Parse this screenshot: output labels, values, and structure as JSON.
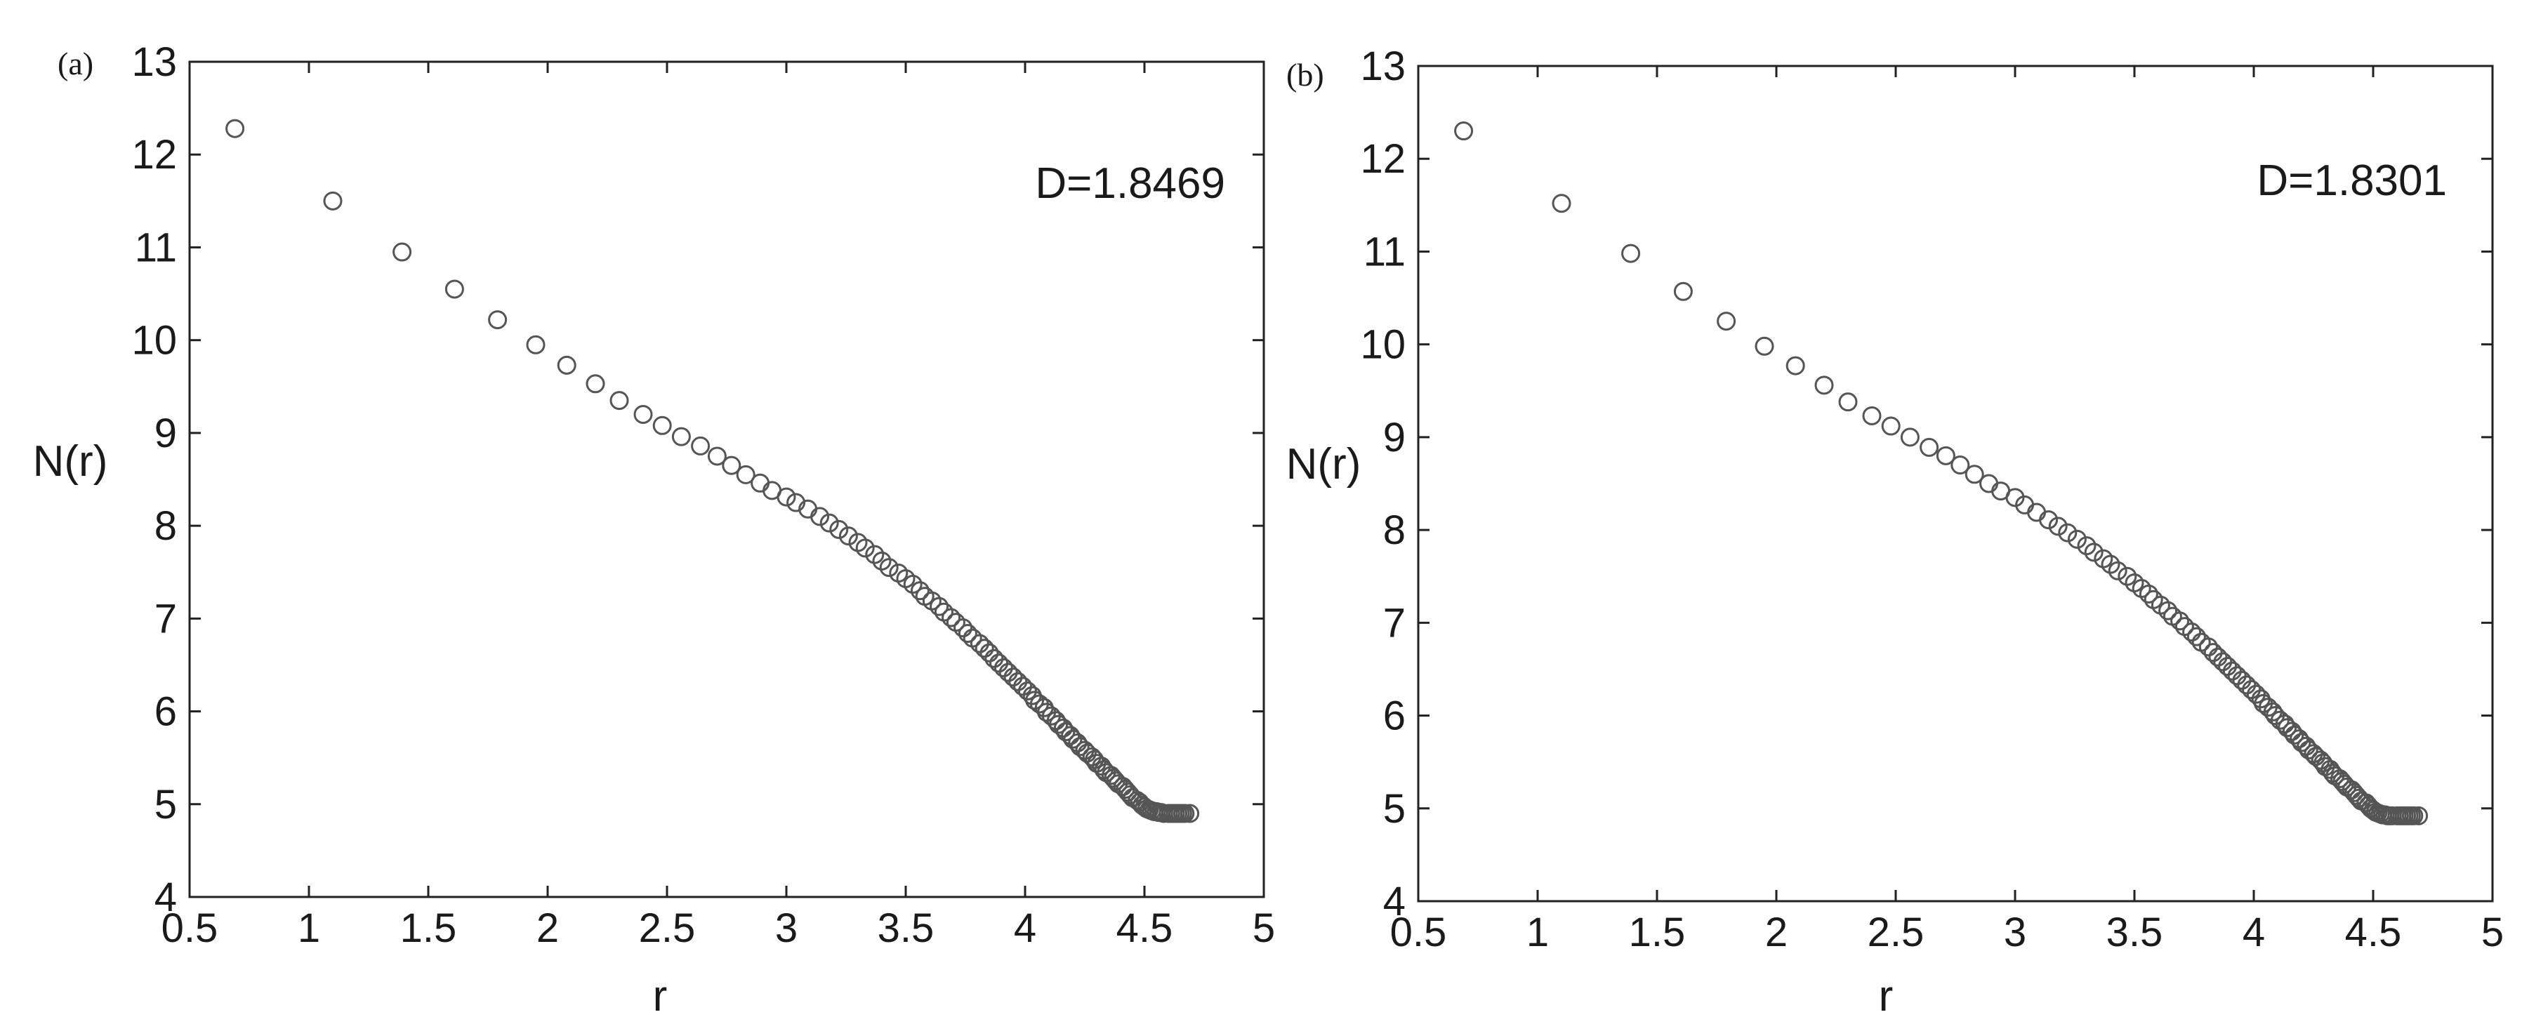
{
  "chart_data": [
    {
      "type": "scatter",
      "panel_label": "(a)",
      "annotation": "D=1.8469",
      "xlabel": "r",
      "ylabel": "N(r)",
      "xlim": [
        0.5,
        5
      ],
      "ylim": [
        4,
        13
      ],
      "xticks": [
        "0.5",
        "1",
        "1.5",
        "2",
        "2.5",
        "3",
        "3.5",
        "4",
        "4.5",
        "5"
      ],
      "yticks": [
        "4",
        "5",
        "6",
        "7",
        "8",
        "9",
        "10",
        "11",
        "12",
        "13"
      ],
      "grid": false,
      "marker": "open-circle",
      "x": [
        0.69,
        1.1,
        1.39,
        1.61,
        1.79,
        1.95,
        2.08,
        2.2,
        2.3,
        2.4,
        2.48,
        2.56,
        2.64,
        2.71,
        2.77,
        2.83,
        2.89,
        2.94,
        3.0,
        3.04,
        3.09,
        3.14,
        3.18,
        3.22,
        3.26,
        3.3,
        3.33,
        3.37,
        3.4,
        3.43,
        3.47,
        3.5,
        3.53,
        3.56,
        3.58,
        3.61,
        3.64,
        3.66,
        3.69,
        3.71,
        3.74,
        3.76,
        3.78,
        3.81,
        3.83,
        3.85,
        3.87,
        3.89,
        3.91,
        3.93,
        3.95,
        3.97,
        3.99,
        4.01,
        4.03,
        4.04,
        4.06,
        4.08,
        4.09,
        4.11,
        4.13,
        4.14,
        4.16,
        4.17,
        4.19,
        4.2,
        4.22,
        4.23,
        4.25,
        4.26,
        4.28,
        4.29,
        4.3,
        4.32,
        4.33,
        4.34,
        4.36,
        4.37,
        4.38,
        4.39,
        4.41,
        4.42,
        4.43,
        4.44,
        4.45,
        4.47,
        4.48,
        4.49,
        4.5,
        4.51,
        4.52,
        4.53,
        4.54,
        4.55,
        4.56,
        4.57,
        4.58,
        4.6,
        4.61,
        4.62,
        4.63,
        4.64,
        4.65,
        4.66,
        4.67,
        4.69
      ],
      "y": [
        12.28,
        11.5,
        10.95,
        10.55,
        10.22,
        9.95,
        9.73,
        9.53,
        9.35,
        9.2,
        9.08,
        8.96,
        8.86,
        8.75,
        8.65,
        8.55,
        8.46,
        8.38,
        8.31,
        8.25,
        8.18,
        8.1,
        8.03,
        7.96,
        7.89,
        7.82,
        7.76,
        7.69,
        7.62,
        7.55,
        7.49,
        7.43,
        7.37,
        7.3,
        7.24,
        7.19,
        7.13,
        7.07,
        7.01,
        6.96,
        6.9,
        6.84,
        6.79,
        6.73,
        6.68,
        6.63,
        6.57,
        6.52,
        6.47,
        6.42,
        6.37,
        6.32,
        6.27,
        6.22,
        6.17,
        6.12,
        6.08,
        6.04,
        5.99,
        5.95,
        5.9,
        5.86,
        5.82,
        5.78,
        5.74,
        5.7,
        5.66,
        5.62,
        5.58,
        5.55,
        5.51,
        5.48,
        5.44,
        5.41,
        5.37,
        5.34,
        5.31,
        5.28,
        5.25,
        5.22,
        5.19,
        5.16,
        5.13,
        5.1,
        5.07,
        5.04,
        5.02,
        4.99,
        4.97,
        4.95,
        4.94,
        4.93,
        4.92,
        4.92,
        4.91,
        4.91,
        4.9,
        4.9,
        4.9,
        4.9,
        4.9,
        4.9,
        4.9,
        4.9,
        4.9,
        4.9
      ]
    },
    {
      "type": "scatter",
      "panel_label": "(b)",
      "annotation": "D=1.8301",
      "xlabel": "r",
      "ylabel": "N(r)",
      "xlim": [
        0.5,
        5
      ],
      "ylim": [
        4,
        13
      ],
      "xticks": [
        "0.5",
        "1",
        "1.5",
        "2",
        "2.5",
        "3",
        "3.5",
        "4",
        "4.5",
        "5"
      ],
      "yticks": [
        "4",
        "5",
        "6",
        "7",
        "8",
        "9",
        "10",
        "11",
        "12",
        "13"
      ],
      "grid": false,
      "marker": "open-circle",
      "x": [
        0.69,
        1.1,
        1.39,
        1.61,
        1.79,
        1.95,
        2.08,
        2.2,
        2.3,
        2.4,
        2.48,
        2.56,
        2.64,
        2.71,
        2.77,
        2.83,
        2.89,
        2.94,
        3.0,
        3.04,
        3.09,
        3.14,
        3.18,
        3.22,
        3.26,
        3.3,
        3.33,
        3.37,
        3.4,
        3.43,
        3.47,
        3.5,
        3.53,
        3.56,
        3.58,
        3.61,
        3.64,
        3.66,
        3.69,
        3.71,
        3.74,
        3.76,
        3.78,
        3.81,
        3.83,
        3.85,
        3.87,
        3.89,
        3.91,
        3.93,
        3.95,
        3.97,
        3.99,
        4.01,
        4.03,
        4.04,
        4.06,
        4.08,
        4.09,
        4.11,
        4.13,
        4.14,
        4.16,
        4.17,
        4.19,
        4.2,
        4.22,
        4.23,
        4.25,
        4.26,
        4.28,
        4.29,
        4.3,
        4.32,
        4.33,
        4.34,
        4.36,
        4.37,
        4.38,
        4.39,
        4.41,
        4.42,
        4.43,
        4.44,
        4.45,
        4.47,
        4.48,
        4.49,
        4.5,
        4.51,
        4.52,
        4.53,
        4.54,
        4.55,
        4.56,
        4.57,
        4.58,
        4.6,
        4.61,
        4.62,
        4.63,
        4.64,
        4.65,
        4.66,
        4.67,
        4.69
      ],
      "y": [
        12.3,
        11.52,
        10.98,
        10.57,
        10.25,
        9.98,
        9.77,
        9.56,
        9.38,
        9.23,
        9.12,
        9.0,
        8.89,
        8.8,
        8.7,
        8.6,
        8.5,
        8.42,
        8.35,
        8.27,
        8.19,
        8.11,
        8.04,
        7.97,
        7.9,
        7.83,
        7.76,
        7.69,
        7.63,
        7.56,
        7.5,
        7.43,
        7.37,
        7.31,
        7.25,
        7.19,
        7.13,
        7.07,
        7.02,
        6.96,
        6.9,
        6.85,
        6.79,
        6.74,
        6.68,
        6.63,
        6.58,
        6.53,
        6.48,
        6.43,
        6.38,
        6.33,
        6.28,
        6.23,
        6.18,
        6.13,
        6.09,
        6.04,
        6.0,
        5.95,
        5.91,
        5.87,
        5.83,
        5.79,
        5.75,
        5.71,
        5.67,
        5.63,
        5.59,
        5.56,
        5.52,
        5.49,
        5.45,
        5.42,
        5.38,
        5.35,
        5.32,
        5.29,
        5.26,
        5.23,
        5.2,
        5.17,
        5.14,
        5.11,
        5.08,
        5.06,
        5.03,
        5.0,
        4.98,
        4.96,
        4.95,
        4.94,
        4.93,
        4.93,
        4.92,
        4.92,
        4.92,
        4.92,
        4.92,
        4.92,
        4.92,
        4.92,
        4.92,
        4.92,
        4.92,
        4.92
      ]
    }
  ]
}
